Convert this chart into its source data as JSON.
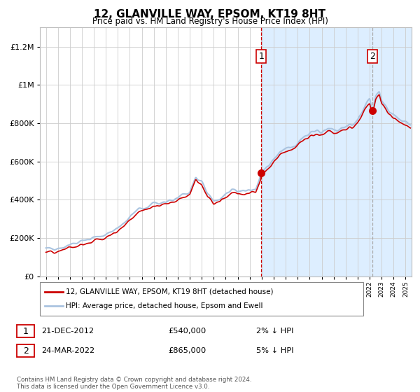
{
  "title": "12, GLANVILLE WAY, EPSOM, KT19 8HT",
  "subtitle": "Price paid vs. HM Land Registry's House Price Index (HPI)",
  "legend_line1": "12, GLANVILLE WAY, EPSOM, KT19 8HT (detached house)",
  "legend_line2": "HPI: Average price, detached house, Epsom and Ewell",
  "annotation1_label": "1",
  "annotation1_date": "21-DEC-2012",
  "annotation1_price": "£540,000",
  "annotation1_pct": "2% ↓ HPI",
  "annotation1_year": 2012.97,
  "annotation1_value": 540000,
  "annotation2_label": "2",
  "annotation2_date": "24-MAR-2022",
  "annotation2_price": "£865,000",
  "annotation2_pct": "5% ↓ HPI",
  "annotation2_year": 2022.23,
  "annotation2_value": 865000,
  "hpi_color": "#aac4e0",
  "price_color": "#cc0000",
  "background_color": "#ffffff",
  "plot_bg_left": "#ffffff",
  "plot_bg_right": "#ddeeff",
  "ymin": 0,
  "ymax": 1300000,
  "xmin": 1994.5,
  "xmax": 2025.5,
  "footer": "Contains HM Land Registry data © Crown copyright and database right 2024.\nThis data is licensed under the Open Government Licence v3.0."
}
